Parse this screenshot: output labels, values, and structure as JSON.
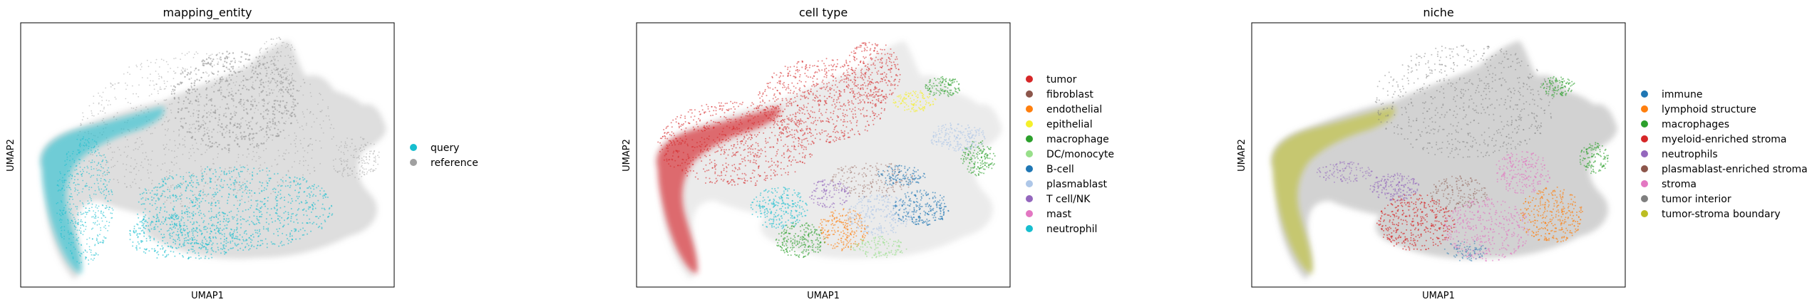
{
  "chart_data": [
    {
      "type": "scatter",
      "title": "mapping_entity",
      "xlabel": "UMAP1",
      "ylabel": "UMAP2",
      "grid": false,
      "ticks": false,
      "legend_position": "right",
      "series": [
        {
          "name": "query",
          "color": "#17becf"
        },
        {
          "name": "reference",
          "color": "#a0a0a0"
        }
      ]
    },
    {
      "type": "scatter",
      "title": "cell type",
      "xlabel": "UMAP1",
      "ylabel": "UMAP2",
      "grid": false,
      "ticks": false,
      "legend_position": "right",
      "series": [
        {
          "name": "tumor",
          "color": "#d62728"
        },
        {
          "name": "fibroblast",
          "color": "#8c564b"
        },
        {
          "name": "endothelial",
          "color": "#ff7f0e"
        },
        {
          "name": "epithelial",
          "color": "#f5f02a"
        },
        {
          "name": "macrophage",
          "color": "#2ca02c"
        },
        {
          "name": "DC/monocyte",
          "color": "#98df8a"
        },
        {
          "name": "B-cell",
          "color": "#1f77b4"
        },
        {
          "name": "plasmablast",
          "color": "#aec7e8"
        },
        {
          "name": "T cell/NK",
          "color": "#9467bd"
        },
        {
          "name": "mast",
          "color": "#e377c2"
        },
        {
          "name": "neutrophil",
          "color": "#17becf"
        }
      ]
    },
    {
      "type": "scatter",
      "title": "niche",
      "xlabel": "UMAP1",
      "ylabel": "UMAP2",
      "grid": false,
      "ticks": false,
      "legend_position": "right",
      "series": [
        {
          "name": "immune",
          "color": "#1f77b4"
        },
        {
          "name": "lymphoid structure",
          "color": "#ff7f0e"
        },
        {
          "name": "macrophages",
          "color": "#2ca02c"
        },
        {
          "name": "myeloid-enriched stroma",
          "color": "#d62728"
        },
        {
          "name": "neutrophils",
          "color": "#9467bd"
        },
        {
          "name": "plasmablast-enriched stroma",
          "color": "#8c564b"
        },
        {
          "name": "stroma",
          "color": "#e377c2"
        },
        {
          "name": "tumor interior",
          "color": "#7f7f7f"
        },
        {
          "name": "tumor-stroma boundary",
          "color": "#bcbd22"
        }
      ]
    }
  ]
}
